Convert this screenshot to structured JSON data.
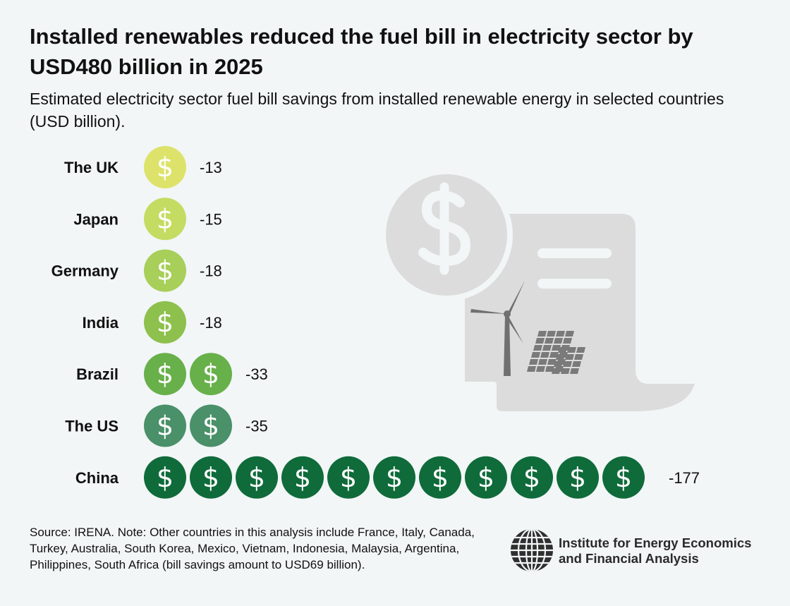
{
  "title": "Installed renewables reduced the fuel bill in electricity sector by USD480 billion in 2025",
  "subtitle": "Estimated electricity sector fuel bill savings from installed renewable energy in selected countries (USD billion).",
  "chart_data": {
    "type": "pictogram",
    "categories": [
      "The UK",
      "Japan",
      "Germany",
      "India",
      "Brazil",
      "The US",
      "China"
    ],
    "values": [
      -13,
      -15,
      -18,
      -18,
      -33,
      -35,
      -177
    ],
    "value_labels": [
      "-13",
      "-15",
      "-18",
      "-18",
      "-33",
      "-35",
      "-177"
    ],
    "icons_per_row": [
      1,
      1,
      1,
      1,
      2,
      2,
      11
    ],
    "icon": "dollar-coin-icon",
    "colors": [
      "#dde36a",
      "#c4dc62",
      "#a7cf59",
      "#8dc04d",
      "#68b04a",
      "#4a9069",
      "#0f6b3a"
    ]
  },
  "illustration": {
    "icons": [
      "dollar-coin-icon",
      "bill-document-icon",
      "wind-turbine-icon",
      "solar-panel-icon"
    ],
    "color": "#dcdcdc"
  },
  "footer": {
    "source_note": "Source: IRENA. Note: Other countries in this analysis include France, Italy, Canada, Turkey, Australia, South Korea, Mexico, Vietnam, Indonesia, Malaysia, Argentina, Philippines, South Africa (bill savings amount to USD69 billion)."
  },
  "brand": {
    "line1": "Institute for Energy Economics",
    "line2": "and Financial Analysis",
    "logo": "globe-logo-icon"
  }
}
